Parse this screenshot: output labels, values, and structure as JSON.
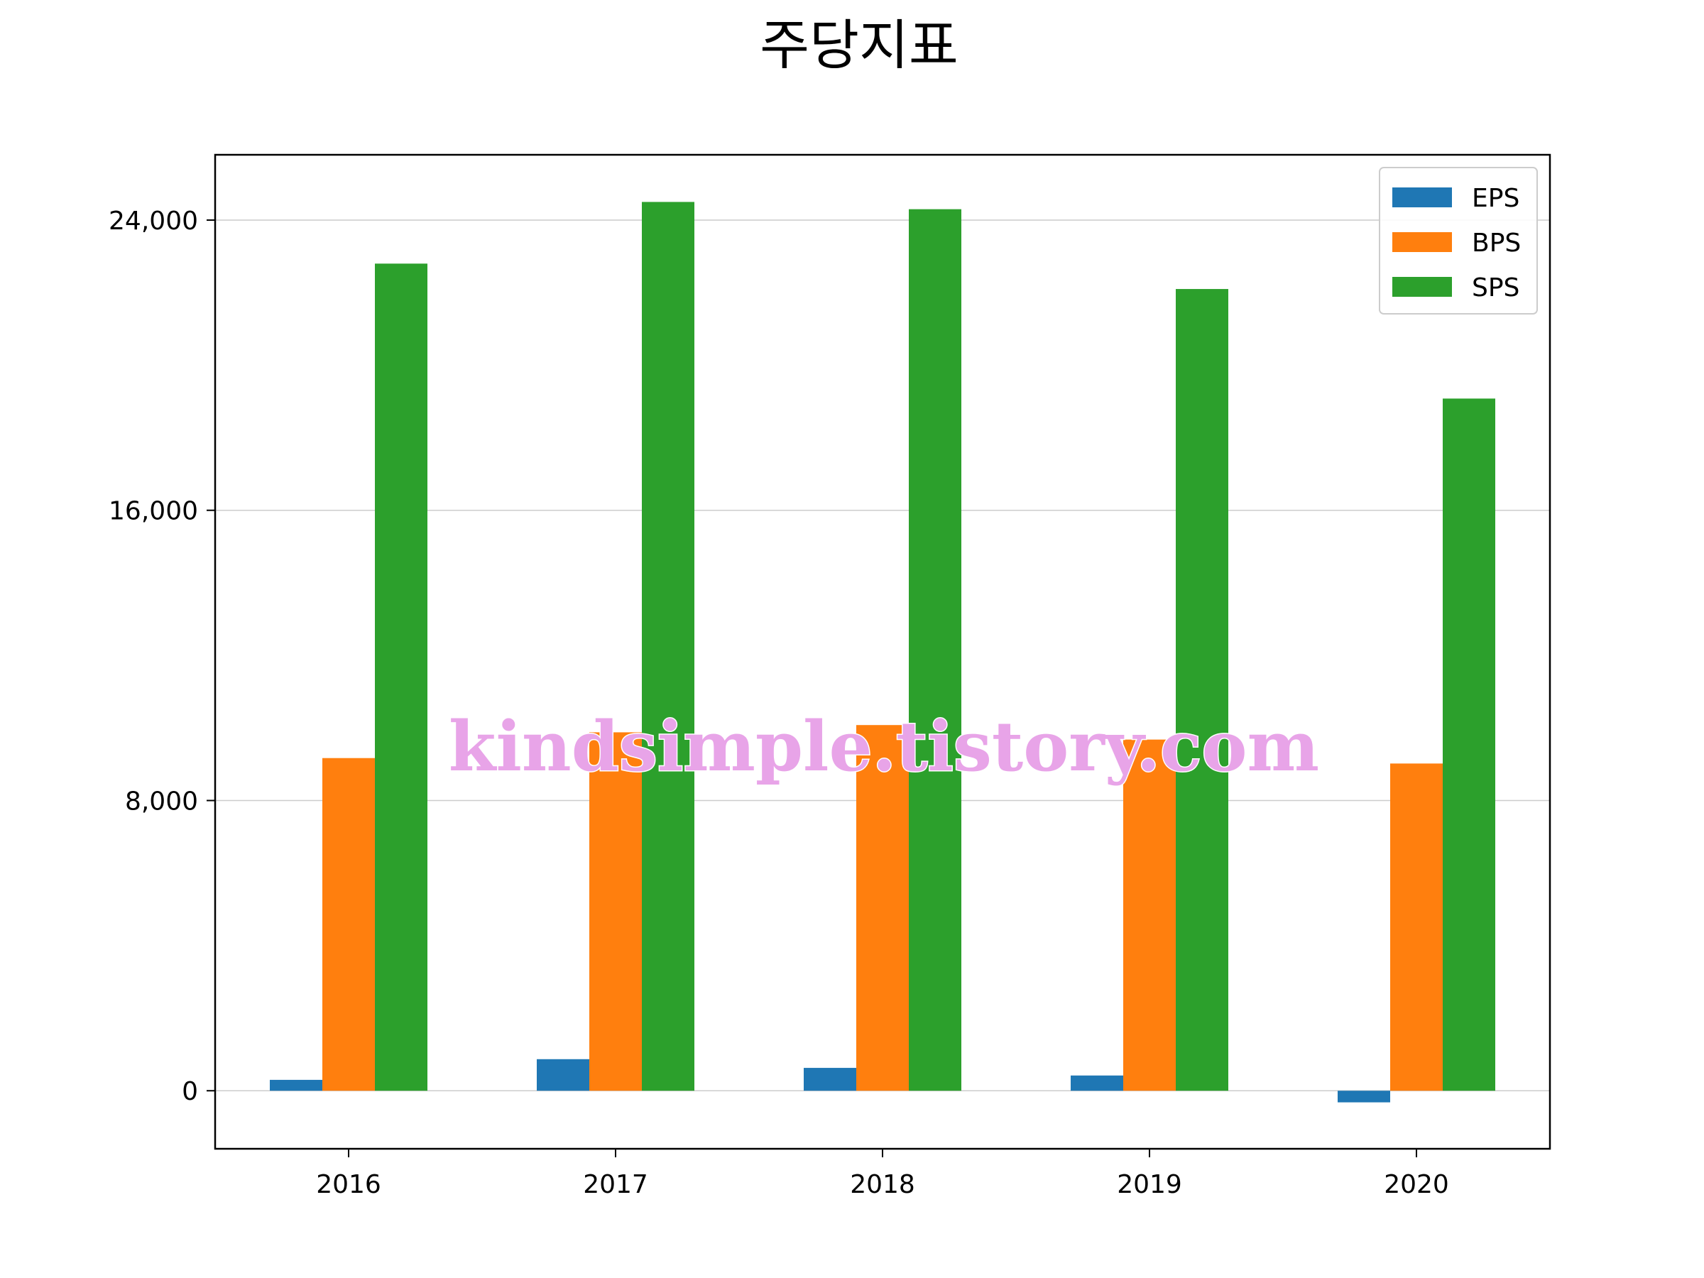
{
  "chart_data": {
    "type": "bar",
    "title": "주당지표",
    "xlabel": "",
    "ylabel": "",
    "categories": [
      "2016",
      "2017",
      "2018",
      "2019",
      "2020"
    ],
    "series": [
      {
        "name": "EPS",
        "color": "#1f77b4",
        "values": [
          300,
          870,
          630,
          420,
          -320
        ]
      },
      {
        "name": "BPS",
        "color": "#ff7f0e",
        "values": [
          9170,
          9880,
          10080,
          9680,
          9020
        ]
      },
      {
        "name": "SPS",
        "color": "#2ca02c",
        "values": [
          22800,
          24500,
          24300,
          22100,
          19080
        ]
      }
    ],
    "yticks": [
      0,
      8000,
      16000,
      24000
    ],
    "ytick_labels": [
      "0",
      "8,000",
      "16,000",
      "24,000"
    ],
    "ylim": [
      -1600,
      25800
    ],
    "grid": "y",
    "legend_position": "top-right",
    "watermark": "kindsimple.tistory.com"
  }
}
